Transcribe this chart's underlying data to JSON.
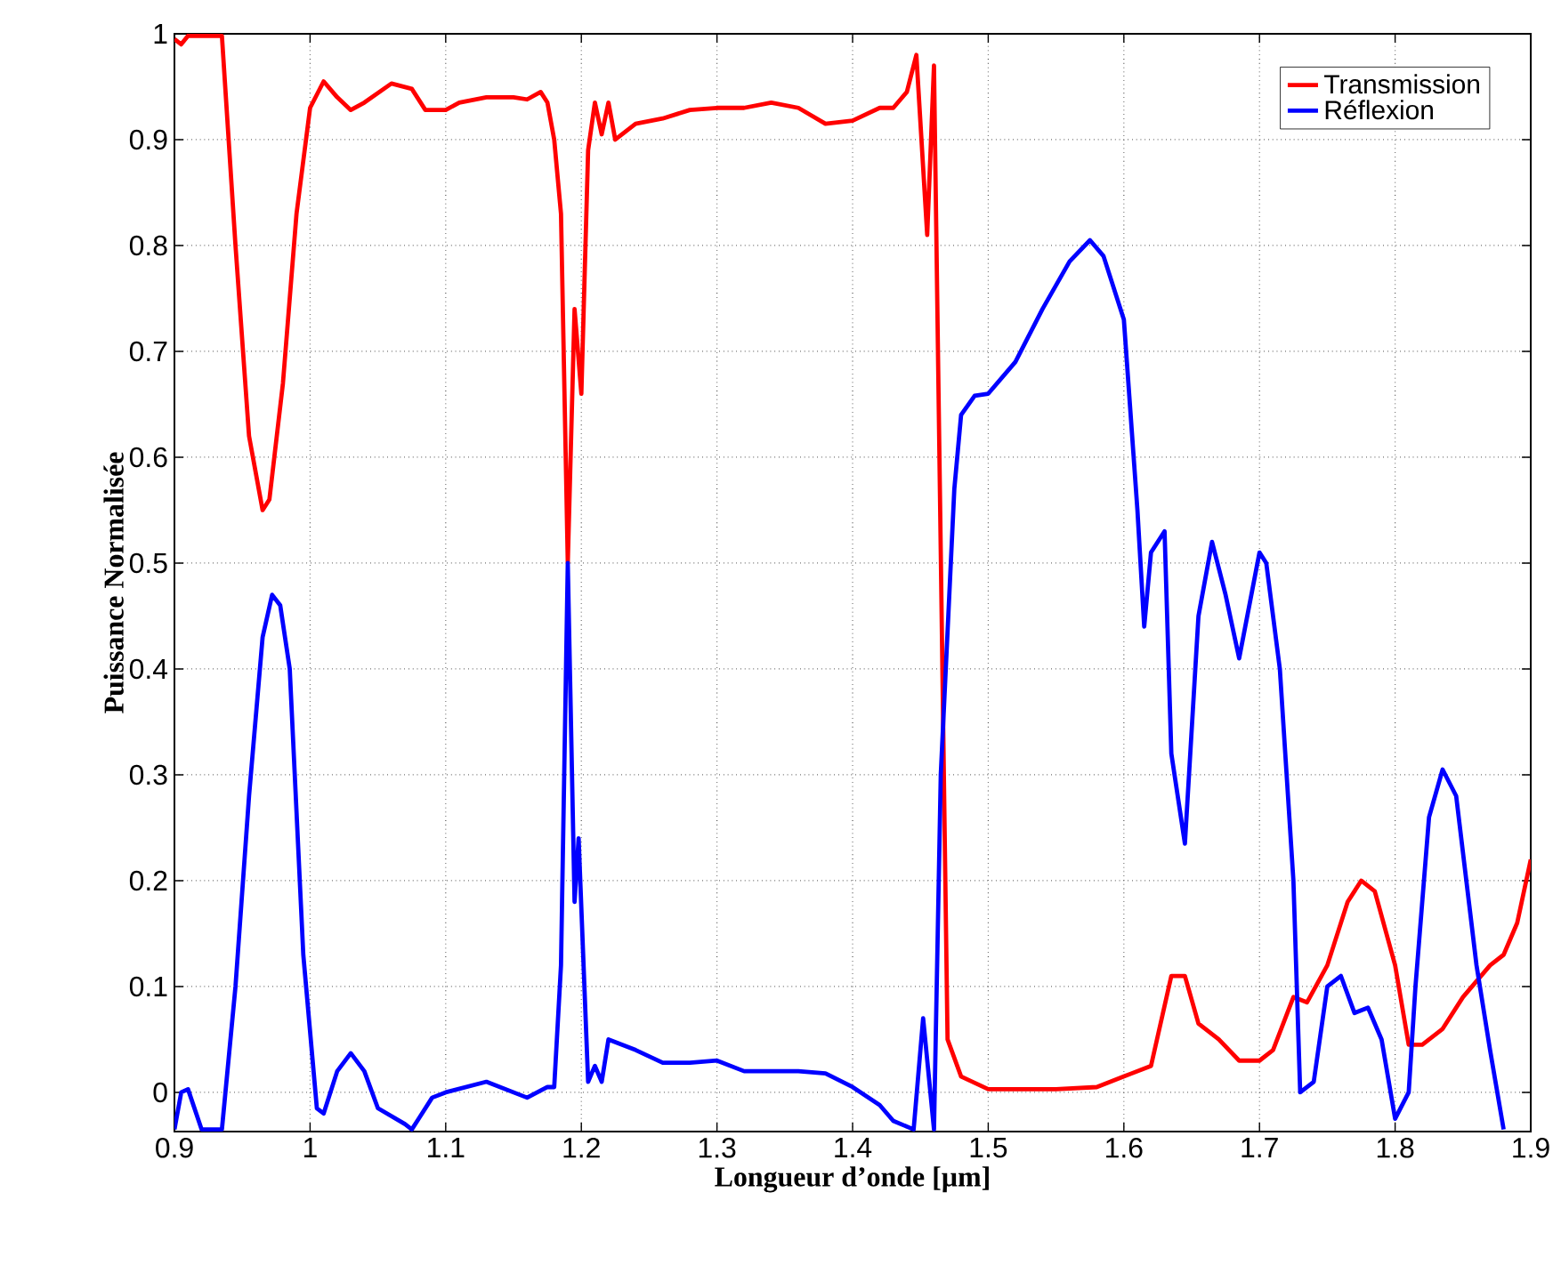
{
  "chart_data": {
    "type": "line",
    "xlabel": "Longueur d’onde [µm]",
    "ylabel": "Puissance Normalisée",
    "xlim": [
      0.9,
      1.9
    ],
    "ylim": [
      -0.037,
      1
    ],
    "xticks": [
      0.9,
      1,
      1.1,
      1.2,
      1.3,
      1.4,
      1.5,
      1.6,
      1.7,
      1.8,
      1.9
    ],
    "yticks": [
      0,
      0.1,
      0.2,
      0.3,
      0.4,
      0.5,
      0.6,
      0.7,
      0.8,
      0.9,
      1
    ],
    "grid": true,
    "legend": "top right",
    "line_style": "solid",
    "marker": "none",
    "series": [
      {
        "name": "Transmission",
        "color": "#ff0000",
        "x": [
          0.9,
          0.905,
          0.91,
          0.935,
          0.945,
          0.955,
          0.965,
          0.97,
          0.98,
          0.99,
          1.0,
          1.01,
          1.02,
          1.03,
          1.04,
          1.06,
          1.075,
          1.085,
          1.1,
          1.11,
          1.13,
          1.15,
          1.16,
          1.17,
          1.175,
          1.18,
          1.185,
          1.19,
          1.195,
          1.2,
          1.205,
          1.21,
          1.215,
          1.22,
          1.225,
          1.24,
          1.26,
          1.28,
          1.3,
          1.32,
          1.34,
          1.36,
          1.38,
          1.4,
          1.42,
          1.43,
          1.44,
          1.447,
          1.455,
          1.46,
          1.47,
          1.48,
          1.5,
          1.55,
          1.58,
          1.6,
          1.62,
          1.635,
          1.645,
          1.655,
          1.67,
          1.685,
          1.7,
          1.71,
          1.725,
          1.735,
          1.75,
          1.765,
          1.775,
          1.785,
          1.8,
          1.81,
          1.82,
          1.835,
          1.85,
          1.87,
          1.88,
          1.89,
          1.9
        ],
        "values": [
          0.995,
          0.99,
          0.998,
          0.998,
          0.8,
          0.62,
          0.55,
          0.56,
          0.67,
          0.83,
          0.93,
          0.955,
          0.94,
          0.928,
          0.935,
          0.953,
          0.948,
          0.928,
          0.928,
          0.935,
          0.94,
          0.94,
          0.938,
          0.945,
          0.935,
          0.9,
          0.83,
          0.5,
          0.74,
          0.66,
          0.89,
          0.935,
          0.905,
          0.935,
          0.9,
          0.915,
          0.92,
          0.928,
          0.93,
          0.93,
          0.935,
          0.93,
          0.915,
          0.918,
          0.93,
          0.93,
          0.945,
          0.98,
          0.81,
          0.97,
          0.05,
          0.015,
          0.003,
          0.003,
          0.005,
          0.015,
          0.025,
          0.11,
          0.11,
          0.065,
          0.05,
          0.03,
          0.03,
          0.04,
          0.09,
          0.085,
          0.12,
          0.18,
          0.2,
          0.19,
          0.12,
          0.045,
          0.045,
          0.06,
          0.09,
          0.12,
          0.13,
          0.16,
          0.22
        ]
      },
      {
        "name": "Réflexion",
        "color": "#0000ff",
        "x": [
          0.9,
          0.905,
          0.91,
          0.92,
          0.935,
          0.945,
          0.955,
          0.965,
          0.972,
          0.978,
          0.985,
          0.995,
          1.005,
          1.01,
          1.02,
          1.03,
          1.04,
          1.05,
          1.07,
          1.075,
          1.08,
          1.09,
          1.1,
          1.13,
          1.16,
          1.175,
          1.18,
          1.185,
          1.19,
          1.195,
          1.198,
          1.205,
          1.21,
          1.215,
          1.22,
          1.24,
          1.26,
          1.28,
          1.3,
          1.32,
          1.34,
          1.36,
          1.38,
          1.4,
          1.42,
          1.43,
          1.445,
          1.452,
          1.46,
          1.465,
          1.475,
          1.48,
          1.49,
          1.5,
          1.52,
          1.54,
          1.56,
          1.575,
          1.585,
          1.6,
          1.61,
          1.615,
          1.62,
          1.63,
          1.635,
          1.645,
          1.655,
          1.665,
          1.675,
          1.685,
          1.7,
          1.705,
          1.715,
          1.725,
          1.73,
          1.74,
          1.75,
          1.76,
          1.77,
          1.78,
          1.79,
          1.8,
          1.81,
          1.815,
          1.825,
          1.835,
          1.845,
          1.86,
          1.87,
          1.88
        ],
        "values": [
          -0.035,
          0.0,
          0.003,
          -0.035,
          -0.035,
          0.1,
          0.28,
          0.43,
          0.47,
          0.46,
          0.4,
          0.13,
          -0.015,
          -0.02,
          0.02,
          0.037,
          0.02,
          -0.015,
          -0.03,
          -0.035,
          -0.025,
          -0.005,
          0.0,
          0.01,
          -0.005,
          0.005,
          0.005,
          0.12,
          0.5,
          0.18,
          0.24,
          0.01,
          0.025,
          0.01,
          0.05,
          0.04,
          0.028,
          0.028,
          0.03,
          0.02,
          0.02,
          0.02,
          0.018,
          0.005,
          -0.012,
          -0.027,
          -0.035,
          0.07,
          -0.035,
          0.3,
          0.57,
          0.64,
          0.658,
          0.66,
          0.69,
          0.74,
          0.785,
          0.805,
          0.79,
          0.73,
          0.55,
          0.44,
          0.51,
          0.53,
          0.32,
          0.235,
          0.45,
          0.52,
          0.47,
          0.41,
          0.51,
          0.5,
          0.4,
          0.2,
          0.0,
          0.01,
          0.1,
          0.11,
          0.075,
          0.08,
          0.05,
          -0.025,
          0.0,
          0.1,
          0.26,
          0.305,
          0.28,
          0.12,
          0.04,
          -0.035
        ]
      }
    ]
  }
}
